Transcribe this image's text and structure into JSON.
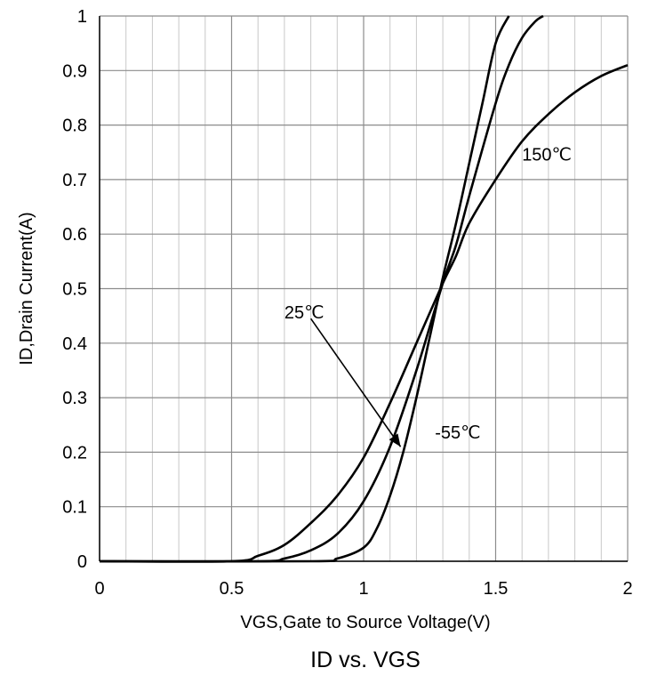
{
  "chart_data": {
    "type": "line",
    "title": "ID vs. VGS",
    "xlabel": "VGS,Gate to Source Voltage(V)",
    "ylabel": "ID,Drain Current(A)",
    "xlim": [
      0,
      2
    ],
    "ylim": [
      0,
      1
    ],
    "x_ticks": [
      "0",
      "0.5",
      "1",
      "1.5",
      "2"
    ],
    "y_ticks": [
      "0",
      "0.1",
      "0.2",
      "0.3",
      "0.4",
      "0.5",
      "0.6",
      "0.7",
      "0.8",
      "0.9",
      "1"
    ],
    "grid": true,
    "series": [
      {
        "name": "150℃",
        "x": [
          0.0,
          0.5,
          0.6,
          0.7,
          0.8,
          0.9,
          1.0,
          1.1,
          1.2,
          1.3,
          1.35,
          1.4,
          1.5,
          1.6,
          1.7,
          1.8,
          1.9,
          2.0
        ],
        "y": [
          0.0,
          0.0,
          0.01,
          0.03,
          0.07,
          0.12,
          0.19,
          0.29,
          0.4,
          0.51,
          0.56,
          0.62,
          0.7,
          0.77,
          0.82,
          0.86,
          0.89,
          0.91
        ]
      },
      {
        "name": "25℃",
        "x": [
          0.0,
          0.6,
          0.7,
          0.8,
          0.9,
          1.0,
          1.1,
          1.2,
          1.3,
          1.35,
          1.4,
          1.5,
          1.55,
          1.6,
          1.65,
          1.68
        ],
        "y": [
          0.0,
          0.0,
          0.005,
          0.02,
          0.05,
          0.11,
          0.21,
          0.35,
          0.51,
          0.58,
          0.67,
          0.84,
          0.91,
          0.96,
          0.99,
          1.0
        ]
      },
      {
        "name": "-55℃",
        "x": [
          0.0,
          0.8,
          0.9,
          1.0,
          1.05,
          1.1,
          1.15,
          1.2,
          1.25,
          1.3,
          1.35,
          1.4,
          1.45,
          1.5,
          1.55
        ],
        "y": [
          0.0,
          0.0,
          0.005,
          0.025,
          0.06,
          0.12,
          0.2,
          0.3,
          0.41,
          0.52,
          0.62,
          0.73,
          0.84,
          0.95,
          1.0
        ]
      }
    ],
    "annotations": [
      {
        "text": "150℃",
        "x": 1.6,
        "y": 0.735
      },
      {
        "text": "25℃",
        "x": 0.7,
        "y": 0.445
      },
      {
        "text": "-55℃",
        "x": 1.27,
        "y": 0.225
      }
    ],
    "arrow": {
      "from": [
        0.8,
        0.445
      ],
      "to": [
        1.14,
        0.21
      ]
    }
  }
}
